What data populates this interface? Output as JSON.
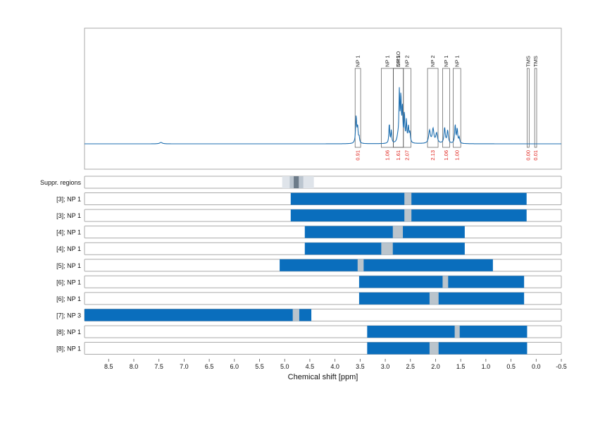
{
  "chart_data": {
    "type": "line",
    "title": "",
    "xlabel": "Chemical shift [ppm]",
    "xlim": [
      8.98,
      -0.5
    ],
    "x_reversed": true,
    "x_ticks": [
      "8.5",
      "8.0",
      "7.5",
      "7.0",
      "6.5",
      "6.0",
      "5.5",
      "5.0",
      "4.5",
      "4.0",
      "3.5",
      "3.0",
      "2.5",
      "2.0",
      "1.5",
      "1.0",
      "0.5",
      "0.0",
      "-0.5"
    ],
    "x_tick_values": [
      8.5,
      8.0,
      7.5,
      7.0,
      6.5,
      6.0,
      5.5,
      5.0,
      4.5,
      4.0,
      3.5,
      3.0,
      2.5,
      2.0,
      1.5,
      1.0,
      0.5,
      0.0,
      -0.5
    ],
    "grid": "vertical-dotted",
    "colors": {
      "spectrum": "#1f6fb0",
      "range_bar": "#0a6ebd",
      "gap": "#bac4cc",
      "suppr_outer": "#dfe4ea",
      "suppr_mid": "#bcc6d0",
      "suppr_inner": "#6c7b89",
      "integral": "#e0201a",
      "box": "#555555"
    },
    "spectrum_peaks": [
      {
        "ppm": 7.46,
        "height": 0.05,
        "width": 0.03
      },
      {
        "ppm": 3.58,
        "height": 0.95,
        "width": 0.012
      },
      {
        "ppm": 3.55,
        "height": 0.55,
        "width": 0.012
      },
      {
        "ppm": 3.52,
        "height": 0.2,
        "width": 0.01
      },
      {
        "ppm": 2.92,
        "height": 0.7,
        "width": 0.01
      },
      {
        "ppm": 2.88,
        "height": 0.45,
        "width": 0.01
      },
      {
        "ppm": 2.75,
        "height": 0.2,
        "width": 0.02
      },
      {
        "ppm": 2.72,
        "height": 1.75,
        "width": 0.01
      },
      {
        "ppm": 2.69,
        "height": 1.55,
        "width": 0.01
      },
      {
        "ppm": 2.66,
        "height": 1.2,
        "width": 0.01
      },
      {
        "ppm": 2.62,
        "height": 1.0,
        "width": 0.01
      },
      {
        "ppm": 2.58,
        "height": 0.75,
        "width": 0.01
      },
      {
        "ppm": 2.54,
        "height": 0.55,
        "width": 0.012
      },
      {
        "ppm": 2.51,
        "height": 0.35,
        "width": 0.012
      },
      {
        "ppm": 2.12,
        "height": 0.45,
        "width": 0.02
      },
      {
        "ppm": 2.05,
        "height": 0.5,
        "width": 0.02
      },
      {
        "ppm": 1.98,
        "height": 0.35,
        "width": 0.02
      },
      {
        "ppm": 1.82,
        "height": 0.55,
        "width": 0.015
      },
      {
        "ppm": 1.76,
        "height": 0.45,
        "width": 0.015
      },
      {
        "ppm": 1.61,
        "height": 0.65,
        "width": 0.012
      },
      {
        "ppm": 1.57,
        "height": 0.5,
        "width": 0.012
      },
      {
        "ppm": 1.53,
        "height": 0.2,
        "width": 0.012
      }
    ],
    "integration_regions": [
      {
        "label": "NP 1",
        "from": 3.6,
        "to": 3.49,
        "value": "0.91"
      },
      {
        "label": "NP 1",
        "from": 3.08,
        "to": 2.84,
        "value": "1.06"
      },
      {
        "label": "DMSO",
        "from": 2.84,
        "to": 2.64,
        "value": "1.61"
      },
      {
        "label": "NP 1",
        "from": 2.84,
        "to": 2.64,
        "value": ""
      },
      {
        "label": "NP 2",
        "from": 2.64,
        "to": 2.49,
        "value": "2.07"
      },
      {
        "label": "NP 2",
        "from": 2.16,
        "to": 1.95,
        "value": "2.13"
      },
      {
        "label": "NP 1",
        "from": 1.86,
        "to": 1.72,
        "value": "1.06"
      },
      {
        "label": "NP 1",
        "from": 1.65,
        "to": 1.5,
        "value": "1.00"
      },
      {
        "label": "TMS",
        "from": 0.18,
        "to": 0.14,
        "value": "0.00"
      },
      {
        "label": "TMS",
        "from": 0.03,
        "to": -0.01,
        "value": "0.01"
      }
    ],
    "suppression": {
      "label": "Suppr. regions",
      "outer": [
        5.05,
        4.42
      ],
      "mid": [
        4.9,
        4.63
      ],
      "inner": [
        4.82,
        4.72
      ]
    },
    "range_rows": [
      {
        "label": "[3]; NP 1",
        "from": 4.88,
        "to": 0.19,
        "gaps": [
          [
            2.62,
            2.48
          ]
        ]
      },
      {
        "label": "[3]; NP 1",
        "from": 4.88,
        "to": 0.19,
        "gaps": [
          [
            2.62,
            2.48
          ]
        ]
      },
      {
        "label": "[4]; NP 1",
        "from": 4.6,
        "to": 1.42,
        "gaps": [
          [
            2.85,
            2.65
          ]
        ]
      },
      {
        "label": "[4]; NP 1",
        "from": 4.6,
        "to": 1.42,
        "gaps": [
          [
            3.08,
            2.85
          ]
        ]
      },
      {
        "label": "[5]; NP 1",
        "from": 5.1,
        "to": 0.86,
        "gaps": [
          [
            3.55,
            3.43
          ]
        ]
      },
      {
        "label": "[6]; NP 1",
        "from": 3.52,
        "to": 0.24,
        "gaps": [
          [
            1.86,
            1.75
          ]
        ]
      },
      {
        "label": "[6]; NP 1",
        "from": 3.52,
        "to": 0.24,
        "gaps": [
          [
            2.12,
            1.94
          ]
        ]
      },
      {
        "label": "[7]; NP 3",
        "from": 8.98,
        "to": 4.47,
        "gaps": [
          [
            4.84,
            4.71
          ]
        ]
      },
      {
        "label": "[8]; NP 1",
        "from": 3.36,
        "to": 0.18,
        "gaps": [
          [
            1.62,
            1.52
          ]
        ]
      },
      {
        "label": "[8]; NP 1",
        "from": 3.36,
        "to": 0.18,
        "gaps": [
          [
            2.12,
            1.94
          ]
        ]
      }
    ]
  }
}
